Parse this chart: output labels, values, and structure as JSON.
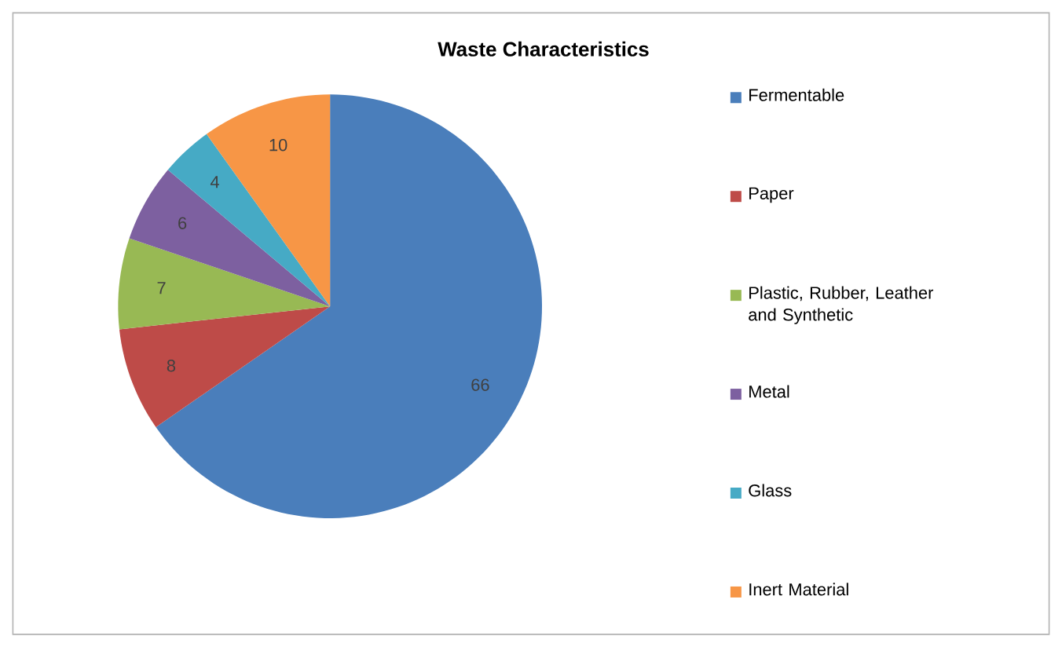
{
  "chart_data": {
    "type": "pie",
    "title": "Waste Characteristics",
    "categories": [
      "Fermentable",
      "Paper",
      "Plastic, Rubber, Leather and Synthetic",
      "Metal",
      "Glass",
      "Inert Material"
    ],
    "values": [
      66,
      8,
      7,
      6,
      4,
      10
    ],
    "colors": [
      "#4a7ebb",
      "#be4b48",
      "#98b954",
      "#7d60a0",
      "#46aac5",
      "#f79646"
    ],
    "data_labels": true,
    "legend": "right"
  }
}
